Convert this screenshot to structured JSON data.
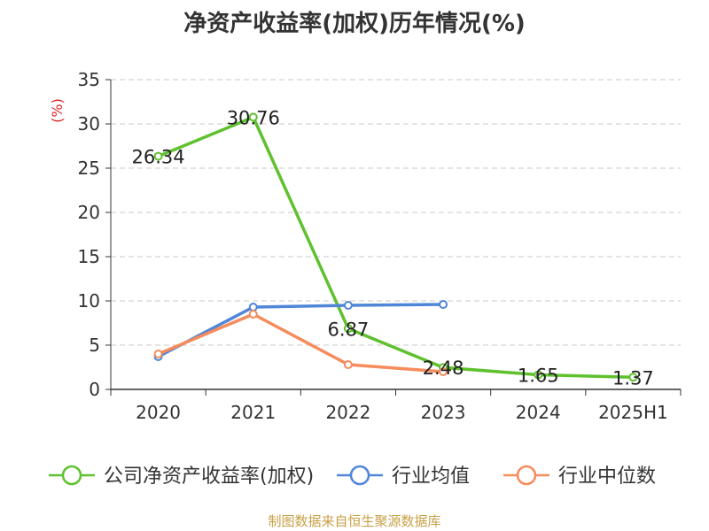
{
  "chart_data": {
    "type": "line",
    "title": "净资产收益率(加权)历年情况(%)",
    "ylabel": "(%)",
    "xlabel": "",
    "categories": [
      "2020",
      "2021",
      "2022",
      "2023",
      "2024",
      "2025H1"
    ],
    "ylim": [
      0,
      35
    ],
    "yticks": [
      0,
      5,
      10,
      15,
      20,
      25,
      30,
      35
    ],
    "grid": true,
    "legend_position": "bottom",
    "series": [
      {
        "name": "公司净资产收益率(加权)",
        "color": "#5ec12d",
        "values": [
          26.34,
          30.76,
          6.87,
          2.48,
          1.65,
          1.37
        ],
        "labels": [
          "26.34",
          "30.76",
          "6.87",
          "2.48",
          "1.65",
          "1.37"
        ]
      },
      {
        "name": "行业均值",
        "color": "#4f86d8",
        "values": [
          3.7,
          9.3,
          9.5,
          9.6,
          null,
          null
        ]
      },
      {
        "name": "行业中位数",
        "color": "#f68b5c",
        "values": [
          4.0,
          8.5,
          2.8,
          2.0,
          null,
          null
        ]
      }
    ]
  },
  "footer": {
    "source": "制图数据来自恒生聚源数据库"
  }
}
